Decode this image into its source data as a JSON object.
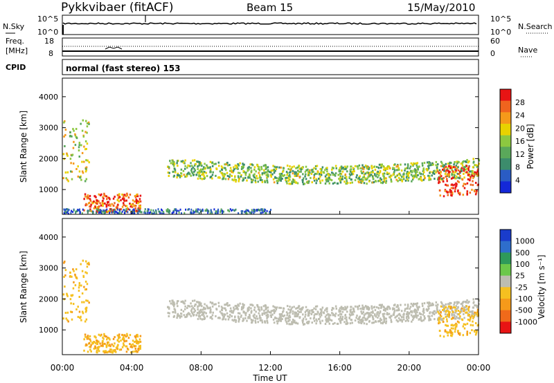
{
  "header": {
    "title": "Pykkvibaer (fitACF)",
    "beam": "Beam 15",
    "date": "15/May/2010"
  },
  "top_panels": {
    "nsky": {
      "left_label": "N.Sky",
      "left_ticks": [
        "10^5",
        "10^0"
      ],
      "right_ticks": [
        "10^5",
        "10^0"
      ],
      "right_label": "N.Search"
    },
    "freq": {
      "left_label_1": "Freq.",
      "left_label_2": "[MHz]",
      "left_ticks": [
        "18",
        "8"
      ],
      "right_ticks": [
        "60",
        "0"
      ],
      "right_label": "Nave"
    },
    "cpid": {
      "label": "CPID",
      "text": "normal (fast stereo) 153"
    }
  },
  "colors": {
    "power_scale": [
      "#1428d8",
      "#2a5cc4",
      "#3c8c6c",
      "#5aa85a",
      "#8cc840",
      "#e8d200",
      "#f59a1a",
      "#f0641e",
      "#e81414"
    ],
    "velocity_scale": [
      "#1a3ccc",
      "#2e6ecc",
      "#2e9a5a",
      "#6cc84a",
      "#bdbdb0",
      "#f5c020",
      "#f59a1a",
      "#f06a1a",
      "#e81414"
    ],
    "gray": "#bebdb4"
  },
  "chart_data": [
    {
      "type": "heatmap",
      "panel": "power",
      "ylabel": "Slant Range [km]",
      "ylim": [
        200,
        4600
      ],
      "yticks": [
        1000,
        2000,
        3000,
        4000
      ],
      "xlim": [
        0,
        24
      ],
      "colorbar": {
        "label": "Power [dB]",
        "ticks": [
          "4",
          "8",
          "12",
          "16",
          "20",
          "24",
          "28"
        ],
        "range": [
          0,
          31
        ]
      },
      "features": [
        {
          "desc": "scatter",
          "x": [
            0,
            1.5
          ],
          "y": [
            1300,
            3300
          ],
          "power_dB": 18
        },
        {
          "desc": "band",
          "x": [
            1.2,
            4.5
          ],
          "y": [
            300,
            900
          ],
          "power_dB": 28
        },
        {
          "desc": "band",
          "x": [
            6.0,
            24.0
          ],
          "y": [
            1300,
            2200
          ],
          "power_dB": 14
        },
        {
          "desc": "patch",
          "x": [
            21.5,
            24.0
          ],
          "y": [
            800,
            1800
          ],
          "power_dB": 30
        }
      ]
    },
    {
      "type": "heatmap",
      "panel": "velocity",
      "ylabel": "Slant Range [km]",
      "xlabel": "Time UT",
      "ylim": [
        200,
        4600
      ],
      "yticks": [
        1000,
        2000,
        3000,
        4000
      ],
      "xlim": [
        0,
        24
      ],
      "xticks": [
        "00:00",
        "04:00",
        "08:00",
        "12:00",
        "16:00",
        "20:00",
        "00:00"
      ],
      "colorbar": {
        "label": "Velocity [m s⁻¹]",
        "ticks": [
          "1000",
          "500",
          "100",
          "25",
          "-25",
          "-100",
          "-500",
          "-1000"
        ]
      },
      "features": [
        {
          "desc": "band",
          "x": [
            1.5,
            4.5
          ],
          "y": [
            300,
            900
          ],
          "velocity": -150
        },
        {
          "desc": "band",
          "x": [
            6.0,
            24.0
          ],
          "y": [
            1300,
            2200
          ],
          "velocity": 0
        },
        {
          "desc": "patch",
          "x": [
            21.5,
            24.0
          ],
          "y": [
            800,
            1800
          ],
          "velocity": -100
        }
      ]
    }
  ]
}
